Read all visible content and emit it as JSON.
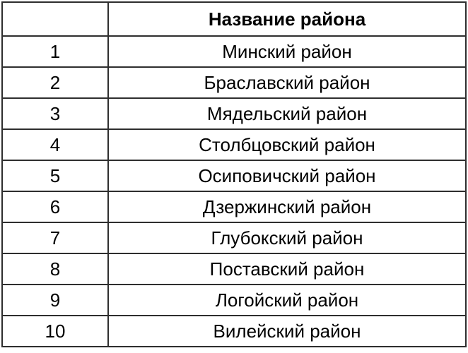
{
  "table": {
    "header": {
      "index_label": "",
      "name_label": "Название района"
    },
    "rows": [
      {
        "index": "1",
        "name": "Минский район"
      },
      {
        "index": "2",
        "name": "Браславский район"
      },
      {
        "index": "3",
        "name": "Мядельский район"
      },
      {
        "index": "4",
        "name": "Столбцовский район"
      },
      {
        "index": "5",
        "name": "Осиповичский район"
      },
      {
        "index": "6",
        "name": "Дзержинский район"
      },
      {
        "index": "7",
        "name": "Глубокский район"
      },
      {
        "index": "8",
        "name": "Поставский район"
      },
      {
        "index": "9",
        "name": "Логойский район"
      },
      {
        "index": "10",
        "name": "Вилейский район"
      }
    ],
    "colors": {
      "border": "#2e2e2e",
      "text": "#000000",
      "background": "#ffffff"
    }
  }
}
